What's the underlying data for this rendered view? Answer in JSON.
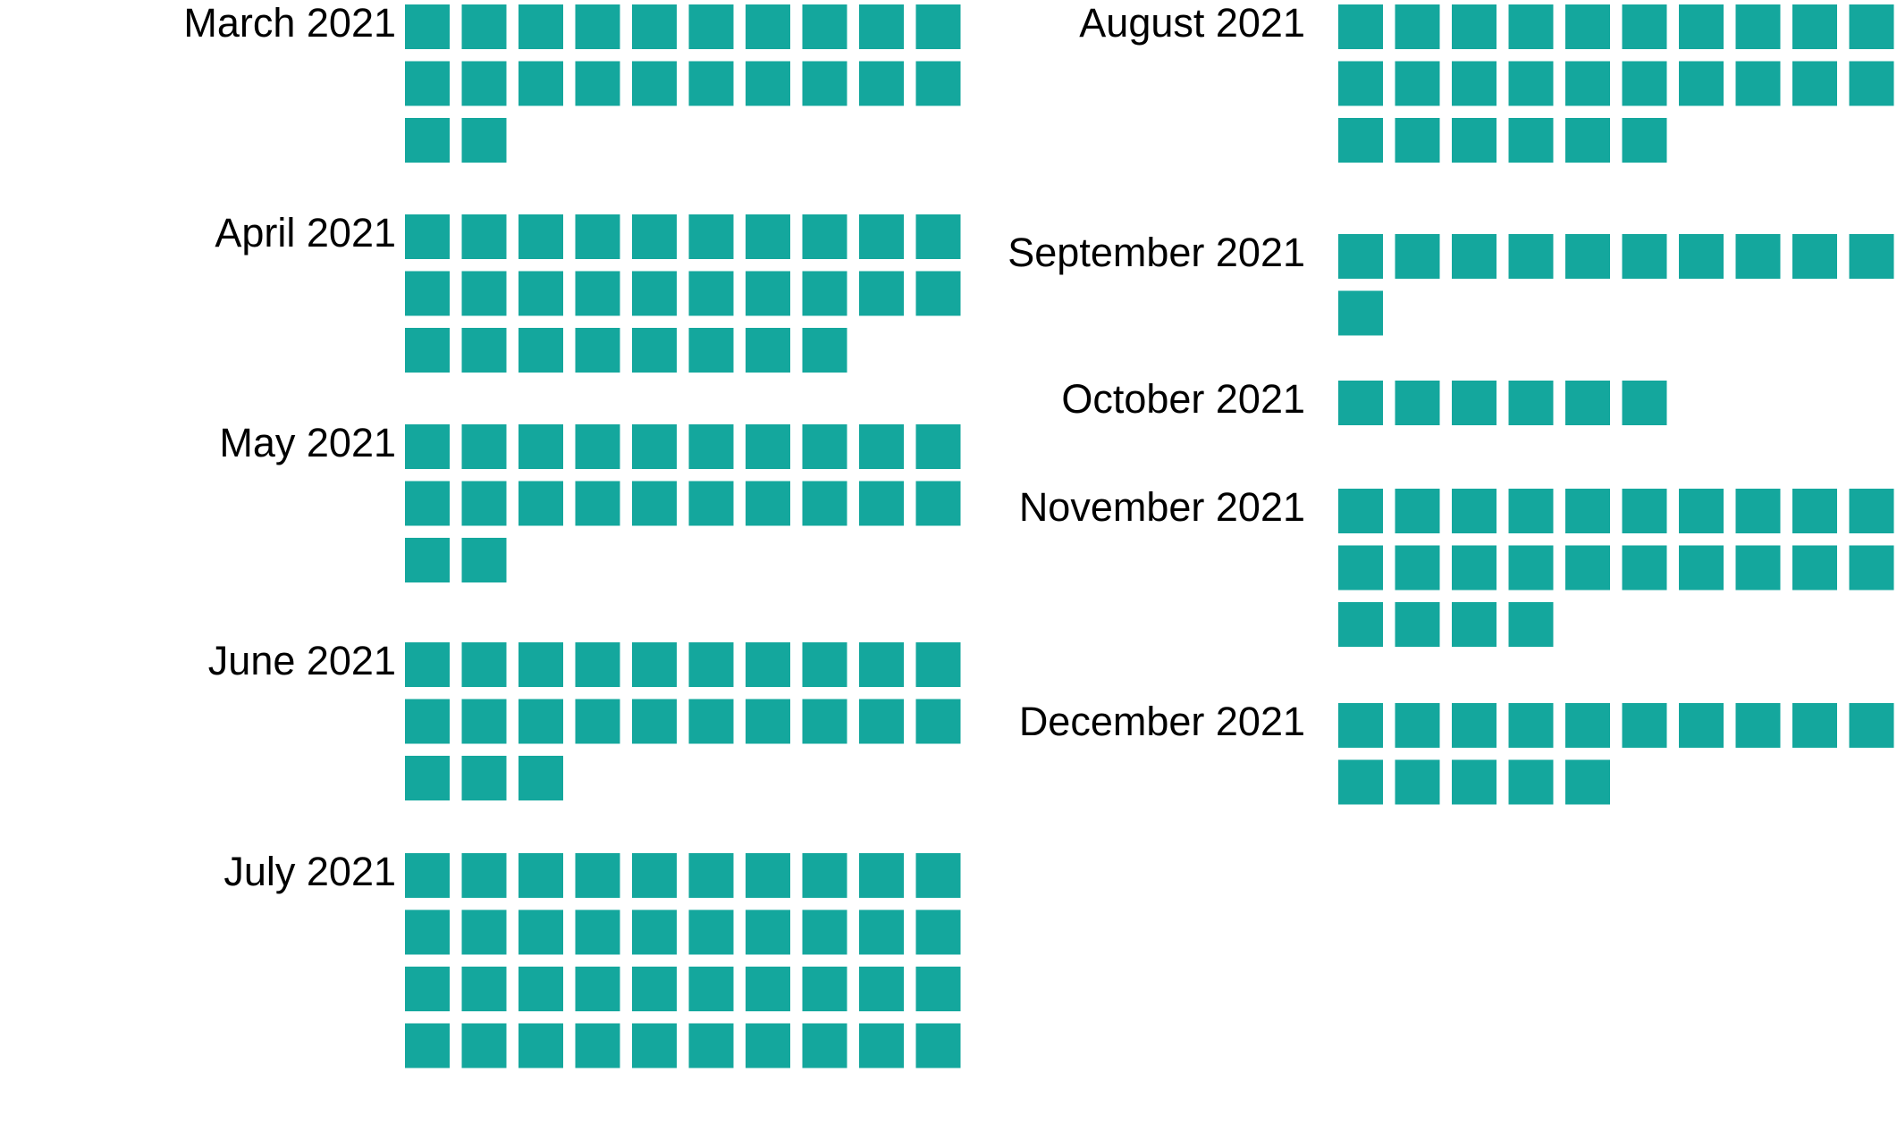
{
  "chart_data": {
    "type": "waffle",
    "unit_per_square": 1,
    "squares_per_row": 10,
    "color": "#14a79d",
    "columns": [
      {
        "months": [
          {
            "label": "March 2021",
            "value": 22
          },
          {
            "label": "April 2021",
            "value": 28
          },
          {
            "label": "May 2021",
            "value": 22
          },
          {
            "label": "June 2021",
            "value": 23
          },
          {
            "label": "July 2021",
            "value": 40
          }
        ]
      },
      {
        "months": [
          {
            "label": "August 2021",
            "value": 26
          },
          {
            "label": "September 2021",
            "value": 11
          },
          {
            "label": "October 2021",
            "value": 6
          },
          {
            "label": "November 2021",
            "value": 24
          },
          {
            "label": "December 2021",
            "value": 15
          }
        ]
      }
    ]
  }
}
